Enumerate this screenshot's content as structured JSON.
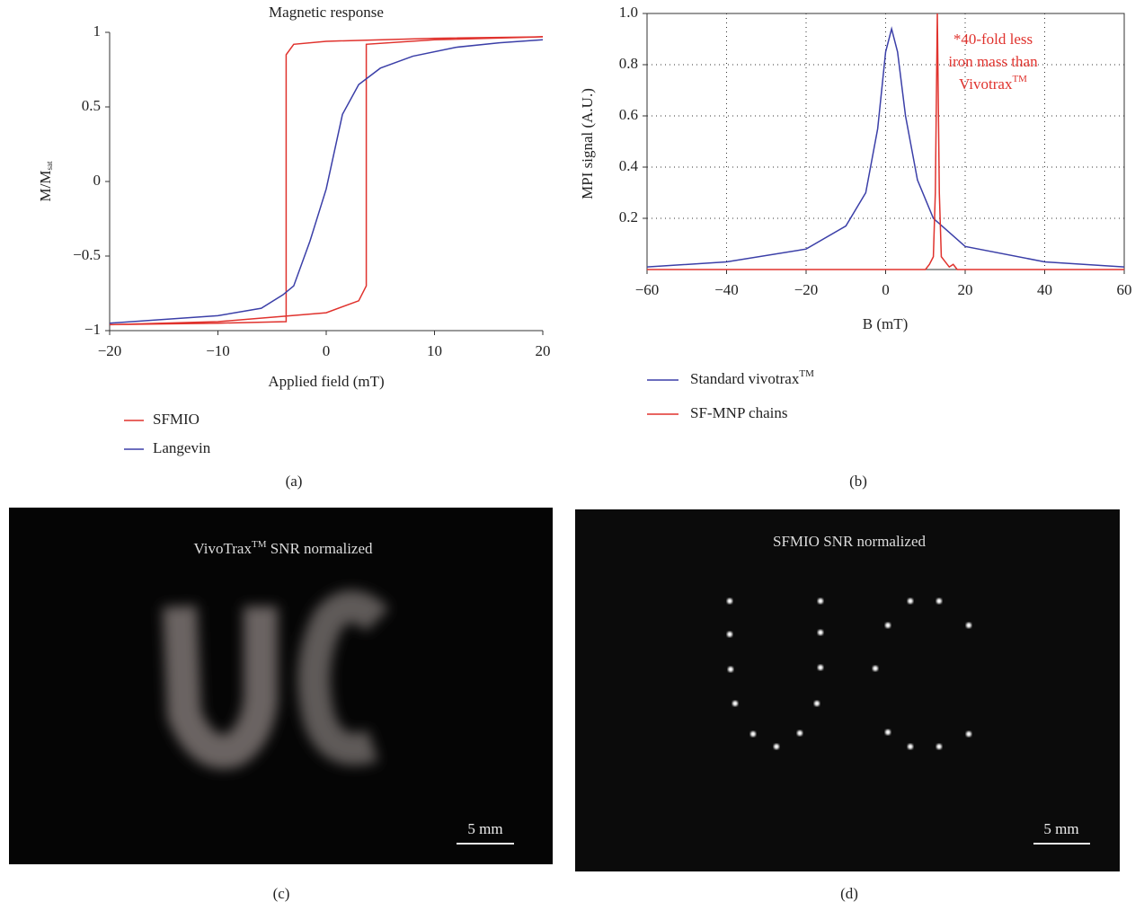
{
  "chart_data": [
    {
      "type": "line",
      "title": "Magnetic response",
      "xlabel": "Applied field (mT)",
      "ylabel": "M/M",
      "ylabel_subscript": "sat",
      "panel": "(a)",
      "xlim": [
        -20,
        20
      ],
      "ylim": [
        -1,
        1
      ],
      "xticks": [
        {
          "value": -20,
          "label": "−20"
        },
        {
          "value": -10,
          "label": "−10"
        },
        0,
        10,
        20
      ],
      "yticks": [
        {
          "value": -1,
          "label": "−1"
        },
        {
          "value": -0.5,
          "label": "−0.5"
        },
        0,
        0.5,
        1
      ],
      "grid": false,
      "series": [
        {
          "name": "SFMIO",
          "color": "#e0322d",
          "x": [
            20,
            10,
            0,
            -3,
            -3.7,
            -3.7,
            -3.7,
            -10,
            -20,
            -10,
            0,
            3,
            3.7,
            3.7,
            10,
            20
          ],
          "values": [
            0.97,
            0.96,
            0.94,
            0.92,
            0.85,
            0.7,
            -0.94,
            -0.95,
            -0.96,
            -0.94,
            -0.88,
            -0.8,
            -0.7,
            0.92,
            0.95,
            0.97
          ]
        },
        {
          "name": "Langevin",
          "color": "#3b3fa8",
          "x": [
            -20,
            -10,
            -6,
            -4,
            -3,
            -1.5,
            0,
            1.5,
            3,
            5,
            8,
            12,
            16,
            20
          ],
          "values": [
            -0.95,
            -0.9,
            -0.85,
            -0.76,
            -0.7,
            -0.4,
            -0.05,
            0.45,
            0.65,
            0.76,
            0.84,
            0.9,
            0.93,
            0.95
          ]
        }
      ]
    },
    {
      "type": "line",
      "xlabel": "B (mT)",
      "ylabel": "MPI signal (A.U.)",
      "panel": "(b)",
      "xlim": [
        -60,
        60
      ],
      "ylim": [
        0,
        1
      ],
      "xticks": [
        {
          "value": -60,
          "label": "−60"
        },
        {
          "value": -40,
          "label": "−40"
        },
        {
          "value": -20,
          "label": "−20"
        },
        0,
        20,
        40,
        60
      ],
      "yticks": [
        0.2,
        0.4,
        0.6,
        0.8,
        {
          "value": 1,
          "label": "1.0"
        }
      ],
      "grid": true,
      "annotation": [
        "*40-fold less",
        "iron mass than",
        "Vivotrax"
      ],
      "annotation_superscript": "TM",
      "series": [
        {
          "name": "Standard vivotrax",
          "name_superscript": "TM",
          "color": "#3b3fa8",
          "x": [
            -60,
            -40,
            -20,
            -10,
            -5,
            -2,
            0,
            1.5,
            3,
            5,
            8,
            12,
            20,
            40,
            60
          ],
          "values": [
            0.01,
            0.03,
            0.08,
            0.17,
            0.3,
            0.55,
            0.85,
            0.94,
            0.85,
            0.6,
            0.35,
            0.2,
            0.09,
            0.03,
            0.01
          ]
        },
        {
          "name": "SF-MNP chains",
          "color": "#e0322d",
          "x": [
            -60,
            10,
            11,
            12,
            12.5,
            13,
            13.5,
            14,
            15,
            16,
            17,
            18,
            60
          ],
          "values": [
            0,
            0,
            0.02,
            0.05,
            0.3,
            1.0,
            0.3,
            0.05,
            0.03,
            0.01,
            0.02,
            0,
            0
          ]
        }
      ]
    }
  ],
  "images": [
    {
      "title": "VivoTrax",
      "title_superscript": "TM",
      "title_rest": " SNR normalized",
      "scale_label": "5 mm",
      "panel": "(c)"
    },
    {
      "title": "SFMIO SNR normalized",
      "scale_label": "5 mm",
      "panel": "(d)"
    }
  ]
}
